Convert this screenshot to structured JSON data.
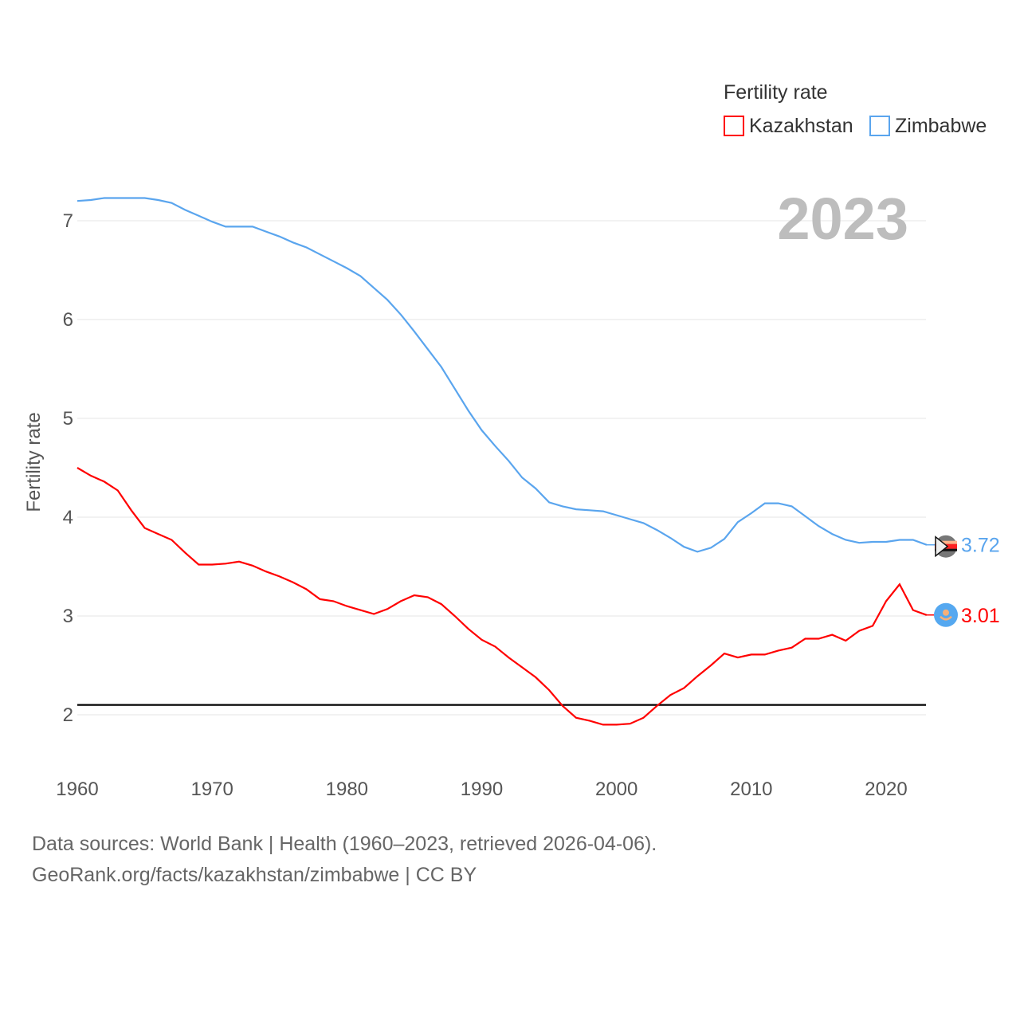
{
  "chart_data": {
    "type": "line",
    "title": "Fertility rate",
    "year_label": "2023",
    "xlabel": "",
    "ylabel": "Fertility rate",
    "xlim": [
      1960,
      2023
    ],
    "ylim": [
      1.5,
      7.4
    ],
    "x_ticks": [
      "1960",
      "1970",
      "1980",
      "1990",
      "2000",
      "2010",
      "2020"
    ],
    "y_ticks": [
      "2",
      "3",
      "4",
      "5",
      "6",
      "7"
    ],
    "grid": true,
    "legend_position": "top-right",
    "reference_line": 2.1,
    "x": [
      1960,
      1961,
      1962,
      1963,
      1964,
      1965,
      1966,
      1967,
      1968,
      1969,
      1970,
      1971,
      1972,
      1973,
      1974,
      1975,
      1976,
      1977,
      1978,
      1979,
      1980,
      1981,
      1982,
      1983,
      1984,
      1985,
      1986,
      1987,
      1988,
      1989,
      1990,
      1991,
      1992,
      1993,
      1994,
      1995,
      1996,
      1997,
      1998,
      1999,
      2000,
      2001,
      2002,
      2003,
      2004,
      2005,
      2006,
      2007,
      2008,
      2009,
      2010,
      2011,
      2012,
      2013,
      2014,
      2015,
      2016,
      2017,
      2018,
      2019,
      2020,
      2021,
      2022,
      2023
    ],
    "series": [
      {
        "name": "Kazakhstan",
        "color": "#ff0000",
        "end_label": "3.01",
        "values": [
          4.5,
          4.42,
          4.36,
          4.27,
          4.07,
          3.89,
          3.83,
          3.77,
          3.64,
          3.52,
          3.52,
          3.53,
          3.55,
          3.51,
          3.45,
          3.4,
          3.34,
          3.27,
          3.17,
          3.15,
          3.1,
          3.06,
          3.02,
          3.07,
          3.15,
          3.21,
          3.19,
          3.12,
          3.0,
          2.87,
          2.76,
          2.69,
          2.58,
          2.48,
          2.38,
          2.25,
          2.09,
          1.97,
          1.94,
          1.9,
          1.9,
          1.91,
          1.97,
          2.09,
          2.2,
          2.27,
          2.39,
          2.5,
          2.62,
          2.58,
          2.61,
          2.61,
          2.65,
          2.68,
          2.77,
          2.77,
          2.81,
          2.75,
          2.85,
          2.9,
          3.15,
          3.32,
          3.06,
          3.01
        ]
      },
      {
        "name": "Zimbabwe",
        "color": "#5aa5ee",
        "end_label": "3.72",
        "values": [
          7.2,
          7.21,
          7.23,
          7.23,
          7.23,
          7.23,
          7.21,
          7.18,
          7.11,
          7.05,
          6.99,
          6.94,
          6.94,
          6.94,
          6.89,
          6.84,
          6.78,
          6.73,
          6.66,
          6.59,
          6.52,
          6.44,
          6.32,
          6.2,
          6.05,
          5.88,
          5.7,
          5.52,
          5.3,
          5.08,
          4.88,
          4.72,
          4.57,
          4.4,
          4.29,
          4.15,
          4.11,
          4.08,
          4.07,
          4.06,
          4.02,
          3.98,
          3.94,
          3.87,
          3.79,
          3.7,
          3.65,
          3.69,
          3.78,
          3.95,
          4.04,
          4.14,
          4.14,
          4.11,
          4.01,
          3.91,
          3.83,
          3.77,
          3.74,
          3.75,
          3.75,
          3.77,
          3.77,
          3.72
        ]
      }
    ]
  },
  "footer": {
    "line1": "Data sources: World Bank | Health (1960–2023, retrieved 2026-04-06).",
    "line2": "GeoRank.org/facts/kazakhstan/zimbabwe | CC BY"
  }
}
